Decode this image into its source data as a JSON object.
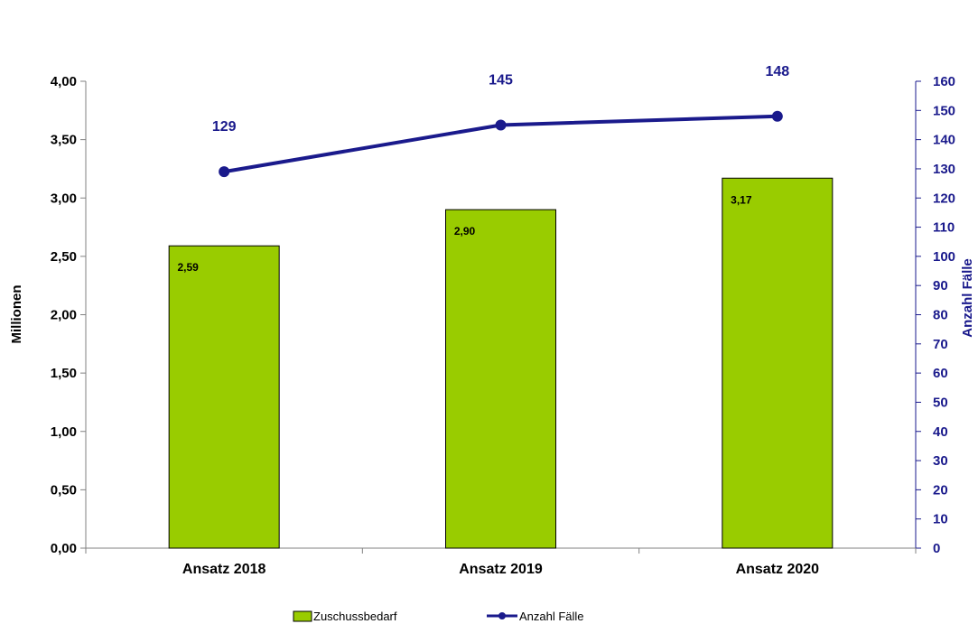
{
  "chart_data": {
    "type": "bar",
    "categories": [
      "Ansatz 2018",
      "Ansatz 2019",
      "Ansatz 2020"
    ],
    "series": [
      {
        "name": "Zuschussbedarf",
        "type": "bar",
        "axis": "left",
        "values": [
          2.59,
          2.9,
          3.17
        ],
        "labels": [
          "2,59",
          "2,90",
          "3,17"
        ],
        "color": "#99cc00"
      },
      {
        "name": "Anzahl Fälle",
        "type": "line",
        "axis": "right",
        "values": [
          129,
          145,
          148
        ],
        "labels": [
          "129",
          "145",
          "148"
        ],
        "color": "#1a1a8c"
      }
    ],
    "ylabel": "Millionen",
    "y2label": "Anzahl Fälle",
    "ylim": [
      0,
      4
    ],
    "y2lim": [
      0,
      160
    ],
    "yticks": [
      "0,00",
      "0,50",
      "1,00",
      "1,50",
      "2,00",
      "2,50",
      "3,00",
      "3,50",
      "4,00"
    ],
    "y2ticks": [
      "0",
      "10",
      "20",
      "30",
      "40",
      "50",
      "60",
      "70",
      "80",
      "90",
      "100",
      "110",
      "120",
      "130",
      "140",
      "150",
      "160"
    ],
    "grid": false,
    "legend_position": "bottom-center"
  }
}
